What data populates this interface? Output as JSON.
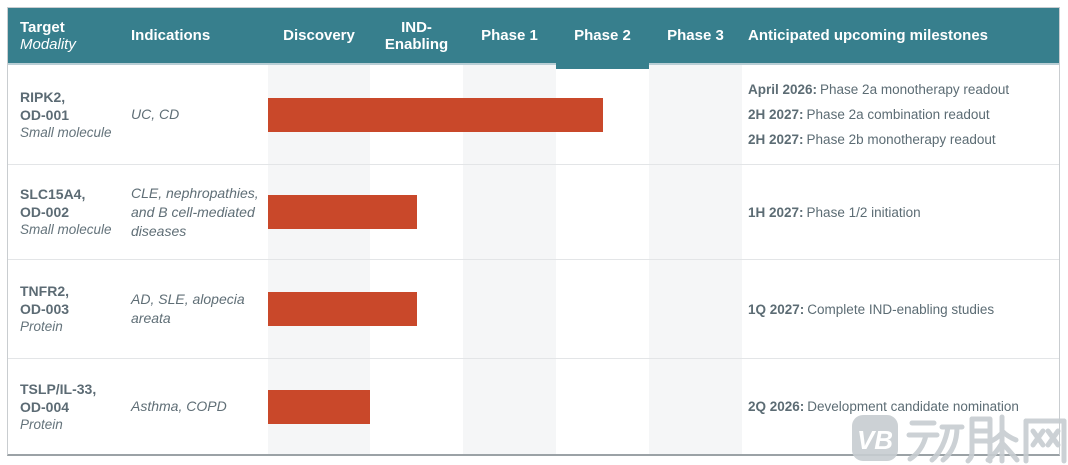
{
  "header": {
    "target_label": "Target",
    "modality_label": "Modality",
    "indications_label": "Indications",
    "stage_labels": [
      "Discovery",
      "IND-Enabling",
      "Phase 1",
      "Phase 2",
      "Phase 3"
    ],
    "milestones_label": "Anticipated upcoming milestones",
    "highlighted_stage": "Phase 2"
  },
  "rows": [
    {
      "target_line1": "RIPK2,",
      "target_line2": "OD-001",
      "modality": "Small molecule",
      "indications": "UC, CD",
      "bar_end_stage_units": 3.5,
      "milestones": [
        {
          "date": "April 2026:",
          "text": "Phase 2a monotherapy readout"
        },
        {
          "date": "2H 2027:",
          "text": "Phase 2a combination readout"
        },
        {
          "date": "2H 2027:",
          "text": "Phase 2b monotherapy readout"
        }
      ]
    },
    {
      "target_line1": "SLC15A4,",
      "target_line2": "OD-002",
      "modality": "Small molecule",
      "indications": "CLE, nephropathies, and B cell-mediated diseases",
      "bar_end_stage_units": 1.5,
      "milestones": [
        {
          "date": "1H 2027:",
          "text": "Phase 1/2 initiation"
        }
      ]
    },
    {
      "target_line1": "TNFR2,",
      "target_line2": "OD-003",
      "modality": "Protein",
      "indications": "AD, SLE, alopecia areata",
      "bar_end_stage_units": 1.5,
      "milestones": [
        {
          "date": "1Q 2027:",
          "text": "Complete IND-enabling studies"
        }
      ]
    },
    {
      "target_line1": "TSLP/IL-33,",
      "target_line2": "OD-004",
      "modality": "Protein",
      "indications": "Asthma, COPD",
      "bar_end_stage_units": 1.0,
      "milestones": [
        {
          "date": "2Q 2026:",
          "text": "Development candidate nomination"
        }
      ]
    }
  ],
  "colors": {
    "header_teal": "#377f8d",
    "bar_orange": "#c9482a",
    "stripe_gray": "#f5f6f7",
    "body_text_gray": "#5c6b74",
    "watermark_gray": "#c7cdd1"
  },
  "watermark": {
    "logo_text": "VB",
    "brand_text": "动脉网"
  },
  "chart_data": {
    "type": "bar",
    "orientation": "horizontal",
    "stage_axis": [
      "Discovery",
      "IND-Enabling",
      "Phase 1",
      "Phase 2",
      "Phase 3"
    ],
    "categories": [
      "RIPK2, OD-001",
      "SLC15A4, OD-002",
      "TNFR2, OD-003",
      "TSLP/IL-33, OD-004"
    ],
    "values_stage_units": [
      3.5,
      1.5,
      1.5,
      1.0
    ],
    "value_meaning": "progress bar extent from start of Discovery; 1 unit = one full stage column",
    "bar_color": "#c9482a",
    "highlighted_stage": "Phase 2"
  }
}
